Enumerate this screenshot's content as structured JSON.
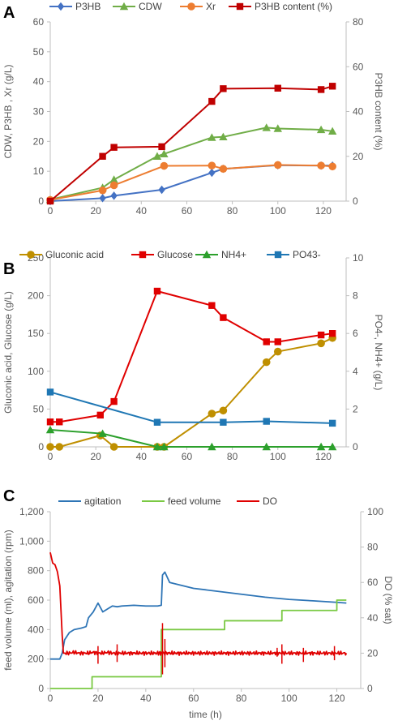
{
  "chart_data": [
    {
      "type": "line",
      "panel": "A",
      "ylabel": "CDW, P3HB , Xr (g/L)",
      "y2label": "P3HB content (%)",
      "xlim": [
        0,
        130
      ],
      "ylim": [
        0,
        60
      ],
      "y2lim": [
        0,
        80
      ],
      "x_ticks": [
        "0",
        "20",
        "40",
        "60",
        "80",
        "100",
        "120"
      ],
      "y_ticks": [
        "0",
        "10",
        "20",
        "30",
        "40",
        "50",
        "60"
      ],
      "y2_ticks": [
        "0",
        "20",
        "40",
        "60",
        "80"
      ],
      "legend_position": "top",
      "series": [
        {
          "name": "P3HB",
          "axis": "left",
          "color": "#4472c4",
          "marker": "diamond",
          "x": [
            0,
            23,
            28,
            49,
            71,
            76,
            100,
            119,
            124
          ],
          "y": [
            0,
            1,
            1.8,
            3.8,
            9.5,
            10.8,
            12,
            11.9,
            11.9
          ]
        },
        {
          "name": "CDW",
          "axis": "left",
          "color": "#70ad47",
          "marker": "triangle",
          "x": [
            0,
            23,
            28,
            47,
            50,
            71,
            76,
            95,
            100,
            119,
            124
          ],
          "y": [
            0.5,
            4.5,
            7.2,
            15,
            15.8,
            21.3,
            21.5,
            24.6,
            24.3,
            23.9,
            23.4
          ]
        },
        {
          "name": "Xr",
          "axis": "left",
          "color": "#ed7d31",
          "marker": "circle",
          "x": [
            0,
            23,
            28,
            50,
            71,
            76,
            100,
            119,
            124
          ],
          "y": [
            0.4,
            3.6,
            5.3,
            11.8,
            11.9,
            10.8,
            12.1,
            11.9,
            11.6
          ]
        },
        {
          "name": "P3HB content (%)",
          "axis": "right",
          "color": "#c00000",
          "marker": "square",
          "x": [
            0,
            23,
            28,
            49,
            71,
            76,
            100,
            119,
            124
          ],
          "y": [
            0,
            20,
            24,
            24.3,
            44.5,
            50.2,
            50.4,
            49.8,
            51.3
          ]
        }
      ]
    },
    {
      "type": "line",
      "panel": "B",
      "ylabel": "Gluconic acid, Glucose (g/L)",
      "y2label": "PO4-, NH4+ (g/L)",
      "xlim": [
        0,
        130
      ],
      "ylim": [
        0,
        250
      ],
      "y2lim": [
        0,
        10
      ],
      "x_ticks": [
        "0",
        "20",
        "40",
        "60",
        "80",
        "100",
        "120"
      ],
      "y_ticks": [
        "0",
        "50",
        "100",
        "150",
        "200",
        "250"
      ],
      "y2_ticks": [
        "0",
        "2",
        "4",
        "6",
        "8",
        "10"
      ],
      "legend_position": "top",
      "series": [
        {
          "name": "Gluconic acid",
          "axis": "left",
          "color": "#bf8f00",
          "marker": "circle",
          "x": [
            0,
            4,
            22,
            28,
            47,
            50,
            71,
            76,
            95,
            100,
            119,
            124
          ],
          "y": [
            0,
            0,
            15,
            0,
            0,
            0,
            44,
            48,
            112,
            126,
            137,
            144
          ]
        },
        {
          "name": "Glucose",
          "axis": "left",
          "color": "#e00000",
          "marker": "square",
          "x": [
            0,
            4,
            22,
            28,
            47,
            71,
            76,
            95,
            100,
            119,
            124
          ],
          "y": [
            33,
            33,
            42,
            60,
            206,
            187,
            171,
            139,
            139,
            148,
            150
          ]
        },
        {
          "name": "NH4+",
          "axis": "right",
          "color": "#2ca02c",
          "marker": "triangle",
          "x": [
            0,
            23,
            47,
            50,
            71,
            95,
            119,
            124
          ],
          "y": [
            0.9,
            0.7,
            0,
            0,
            0,
            0,
            0,
            0
          ]
        },
        {
          "name": "PO43-",
          "axis": "right",
          "color": "#1f77b4",
          "marker": "square",
          "x": [
            0,
            47,
            76,
            95,
            124
          ],
          "y": [
            2.9,
            1.3,
            1.3,
            1.35,
            1.25
          ]
        }
      ]
    },
    {
      "type": "line",
      "panel": "C",
      "xlabel": "time (h)",
      "ylabel": "feed volume (ml), agitation (rpm)",
      "y2label": "DO (% sat)",
      "xlim": [
        0,
        130
      ],
      "ylim": [
        0,
        1200
      ],
      "y2lim": [
        0,
        100
      ],
      "x_ticks": [
        "0",
        "20",
        "40",
        "60",
        "80",
        "100",
        "120"
      ],
      "y_ticks": [
        "0",
        "200",
        "400",
        "600",
        "800",
        "1,000",
        "1,200"
      ],
      "y2_ticks": [
        "0",
        "20",
        "40",
        "60",
        "80",
        "100"
      ],
      "legend_position": "top",
      "series": [
        {
          "name": "agitation",
          "axis": "left",
          "color": "#2e75b6",
          "x": [
            0,
            4,
            5,
            6,
            8,
            10,
            13,
            15,
            16,
            18,
            20,
            22,
            24,
            26,
            28,
            30,
            35,
            40,
            45,
            46.5,
            47,
            48,
            50,
            55,
            60,
            70,
            80,
            90,
            100,
            110,
            120,
            124
          ],
          "y": [
            200,
            200,
            240,
            330,
            380,
            400,
            410,
            420,
            480,
            520,
            580,
            520,
            540,
            560,
            555,
            560,
            565,
            560,
            560,
            565,
            770,
            790,
            720,
            700,
            680,
            660,
            640,
            620,
            605,
            595,
            585,
            580
          ]
        },
        {
          "name": "feed volume",
          "axis": "left",
          "color": "#7ac943",
          "step": true,
          "x": [
            0,
            17.5,
            17.5,
            46.5,
            46.5,
            73,
            73,
            97,
            97,
            120,
            120,
            124
          ],
          "y": [
            0,
            0,
            80,
            80,
            400,
            400,
            460,
            460,
            530,
            530,
            600,
            600
          ]
        },
        {
          "name": "DO",
          "axis": "right",
          "color": "#e00000",
          "x": [
            0,
            1,
            2,
            3,
            4,
            5,
            5.5,
            6,
            8,
            10,
            12,
            14,
            16,
            18,
            20,
            22,
            24,
            26,
            28,
            30,
            35,
            40,
            45,
            46.5,
            47,
            48,
            50,
            55,
            60,
            70,
            80,
            90,
            95,
            100,
            110,
            120,
            124
          ],
          "y": [
            77,
            71,
            70,
            66,
            58,
            30,
            20,
            20,
            20,
            20.5,
            20,
            20,
            20,
            20.5,
            20,
            20,
            20.5,
            20,
            20,
            20,
            20,
            20,
            20,
            20,
            20,
            20,
            20,
            20,
            20,
            20,
            20,
            20,
            20,
            20,
            20,
            20,
            20
          ]
        }
      ]
    }
  ]
}
